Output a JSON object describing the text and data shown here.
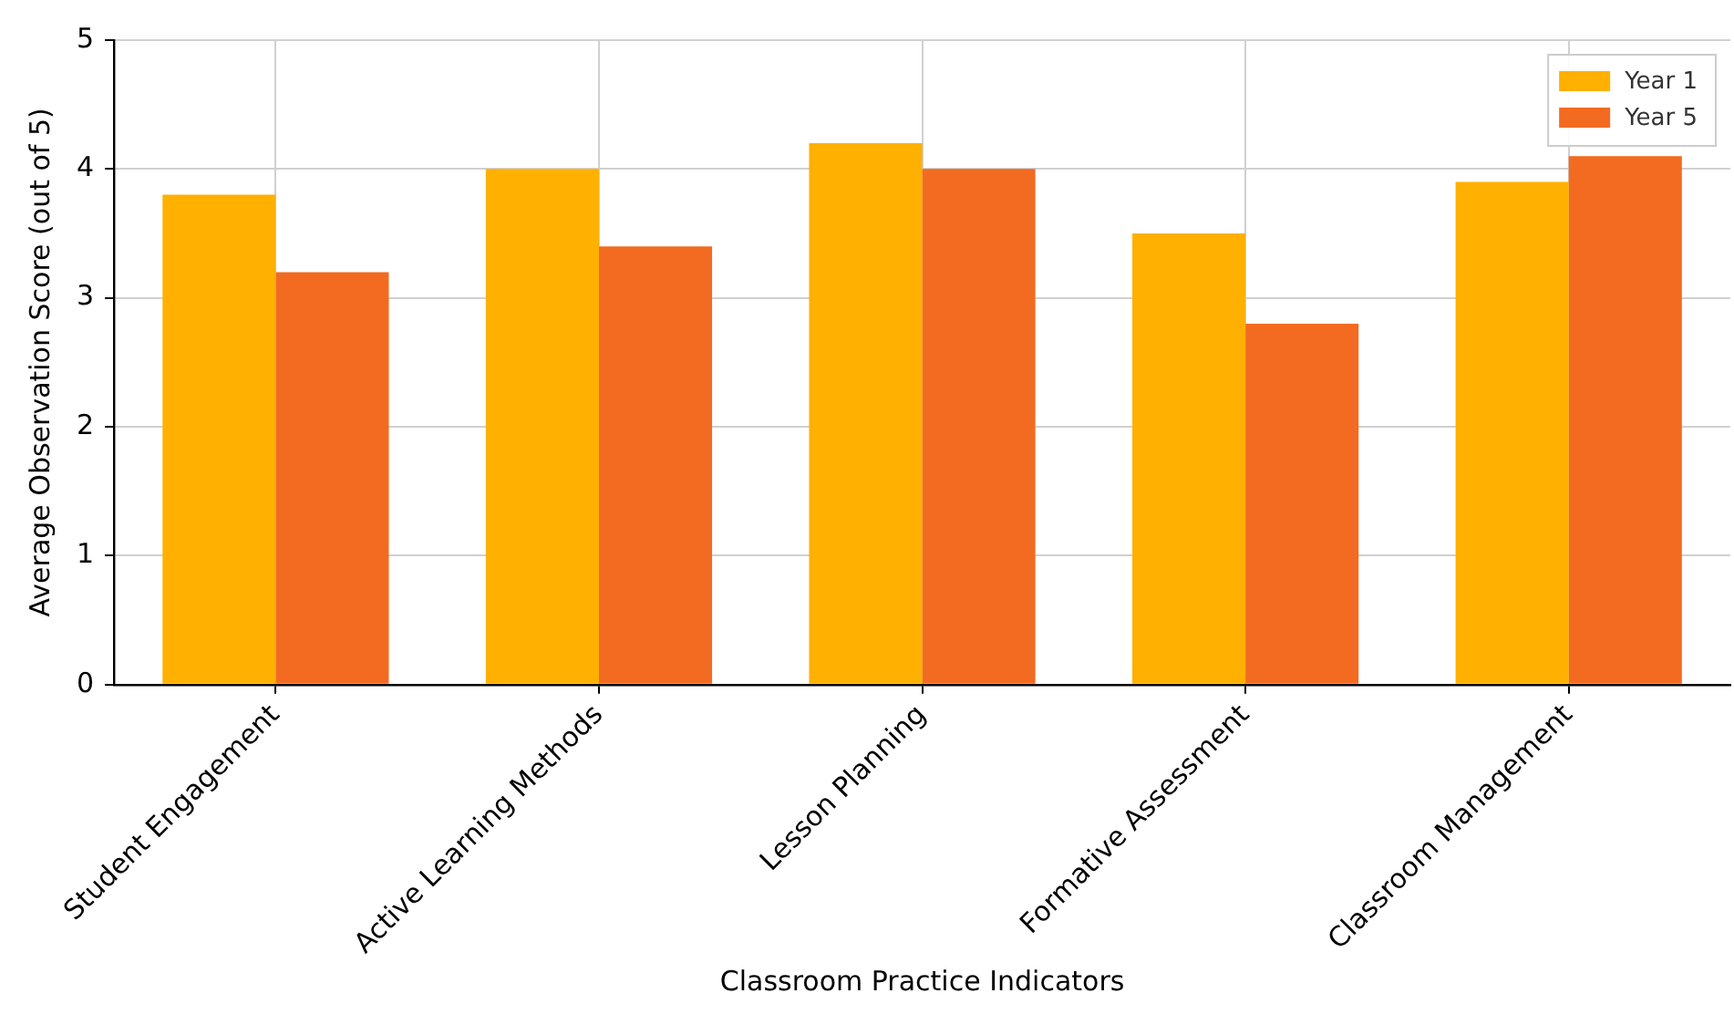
{
  "chart_data": {
    "type": "bar",
    "xlabel": "Classroom Practice Indicators",
    "ylabel": "Average Observation Score (out of 5)",
    "categories": [
      "Student Engagement",
      "Active Learning Methods",
      "Lesson Planning",
      "Formative Assessment",
      "Classroom Management"
    ],
    "series": [
      {
        "name": "Year 1",
        "color": "#ffb000",
        "values": [
          3.8,
          4.0,
          4.2,
          3.5,
          3.9
        ]
      },
      {
        "name": "Year 5",
        "color": "#f26b21",
        "values": [
          3.2,
          3.4,
          4.0,
          2.8,
          4.1
        ]
      }
    ],
    "ylim": [
      0,
      5
    ],
    "yticks": [
      0,
      1,
      2,
      3,
      4,
      5
    ],
    "grid": true,
    "legend": "top right"
  }
}
